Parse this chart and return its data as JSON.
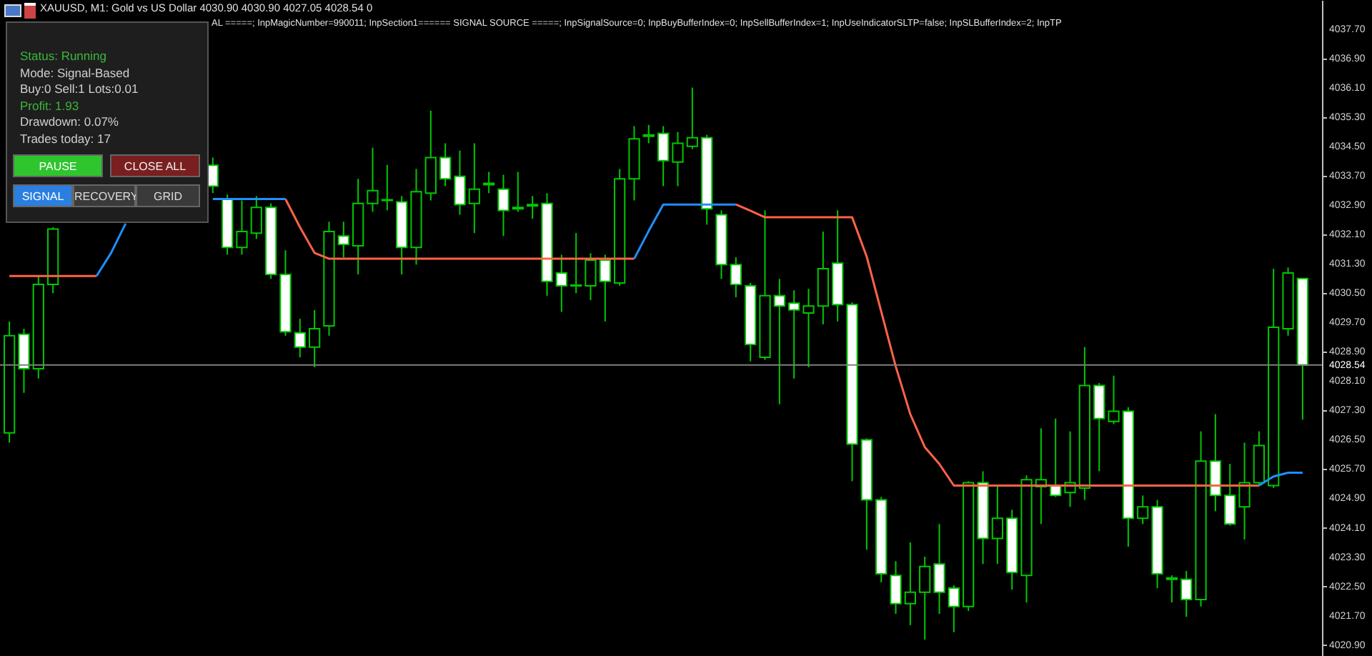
{
  "chart_data": {
    "type": "candlestick",
    "title": "XAUUSD, M1:  Gold vs US Dollar  4030.90 4030.90 4027.05 4028.54  0",
    "annotations": [
      "AL =====; InpMagicNumber=990011; InpSection1====== SIGNAL SOURCE =====; InpSignalSource=0; InpBuyBufferIndex=0; InpSellBufferIndex=1; InpUseIndicatorSLTP=false; InpSLBufferIndex=2; InpTP",
      "Status: Running",
      "Mode: Signal-Based",
      "Buy:0  Sell:1  Lots:0.01",
      "Profit: 1.93",
      "Drawdown: 0.07%",
      "Trades today: 17",
      "PAUSE",
      "CLOSE ALL",
      "SIGNAL",
      "RECOVERY",
      "GRID"
    ],
    "categories": [
      null,
      null,
      null,
      null,
      null,
      null,
      null,
      null,
      null,
      null,
      null,
      null,
      null,
      null,
      null,
      null,
      null,
      null,
      null,
      null,
      null,
      null,
      null,
      null,
      null,
      null,
      null,
      null,
      null,
      null,
      null,
      null,
      null,
      null,
      null,
      null,
      null,
      null,
      null,
      null,
      null,
      null,
      null,
      null,
      null,
      null,
      null,
      null,
      null,
      null,
      null,
      null,
      null,
      null,
      null,
      null,
      null,
      null,
      null,
      null,
      null,
      null,
      null,
      null,
      null,
      null,
      null,
      null,
      null,
      null,
      null,
      null,
      null,
      null,
      null,
      null,
      null,
      null,
      null,
      null,
      null,
      null,
      null,
      null,
      null,
      null,
      null,
      null,
      null,
      null
    ],
    "color": "#00c800",
    "ohlc": [
      [
        4026.69,
        4029.73,
        4026.42,
        4029.34
      ],
      [
        4029.38,
        4029.53,
        4027.78,
        4028.44
      ],
      [
        4028.44,
        4030.97,
        4028.17,
        4030.74
      ],
      [
        4030.74,
        4032.3,
        4030.5,
        4032.25
      ],
      null,
      null,
      null,
      null,
      null,
      null,
      null,
      null,
      null,
      null,
      [
        4033.99,
        4034.2,
        4033.23,
        4033.42
      ],
      [
        4033.07,
        4033.19,
        4031.55,
        4031.75
      ],
      [
        4031.75,
        4033.03,
        4031.55,
        4032.18
      ],
      [
        4032.14,
        4033.15,
        4031.98,
        4032.84
      ],
      [
        4032.84,
        4032.95,
        4030.89,
        4031.01
      ],
      [
        4031.01,
        4031.67,
        4029.34,
        4029.45
      ],
      [
        4029.42,
        4029.8,
        4028.75,
        4029.03
      ],
      [
        4029.03,
        4030.04,
        4028.48,
        4029.53
      ],
      [
        4029.61,
        4032.45,
        4029.34,
        4032.18
      ],
      [
        4032.06,
        4032.45,
        4031.48,
        4031.83
      ],
      [
        4031.79,
        4033.62,
        4031.01,
        4032.95
      ],
      [
        4032.95,
        4034.47,
        4032.72,
        4033.3
      ],
      [
        4033.03,
        4034.0,
        4032.76,
        4033.05
      ],
      [
        4032.99,
        4033.15,
        4031.01,
        4031.75
      ],
      [
        4031.75,
        4033.89,
        4031.28,
        4033.27
      ],
      [
        4033.23,
        4035.48,
        4033.03,
        4034.2
      ],
      [
        4034.2,
        4034.59,
        4033.42,
        4033.62
      ],
      [
        4033.69,
        4034.39,
        4032.64,
        4032.92
      ],
      [
        4032.95,
        4034.59,
        4032.14,
        4033.34
      ],
      [
        4033.46,
        4033.81,
        4033.23,
        4033.5
      ],
      [
        4033.34,
        4033.73,
        4032.06,
        4032.76
      ],
      [
        4032.84,
        4033.81,
        4032.72,
        4032.8
      ],
      [
        4032.92,
        4033.15,
        4032.53,
        4032.88
      ],
      [
        4032.95,
        4033.23,
        4030.43,
        4030.82
      ],
      [
        4031.05,
        4031.55,
        4029.99,
        4030.7
      ],
      [
        4030.72,
        4032.14,
        4030.5,
        4030.7
      ],
      [
        4030.7,
        4031.59,
        4030.31,
        4031.4
      ],
      [
        4031.4,
        4031.55,
        4029.73,
        4030.82
      ],
      [
        4030.78,
        4033.89,
        4030.7,
        4033.62
      ],
      [
        4033.62,
        4035.06,
        4033.03,
        4034.71
      ],
      [
        4034.78,
        4035.09,
        4034.59,
        4034.82
      ],
      [
        4034.86,
        4035.06,
        4033.42,
        4034.12
      ],
      [
        4034.08,
        4034.9,
        4033.42,
        4034.59
      ],
      [
        4034.51,
        4036.11,
        4034.43,
        4034.74
      ],
      [
        4034.74,
        4034.82,
        4032.37,
        4032.8
      ],
      [
        4032.64,
        4032.76,
        4030.89,
        4031.28
      ],
      [
        4031.28,
        4031.48,
        4030.39,
        4030.74
      ],
      [
        4030.7,
        4030.78,
        4028.64,
        4029.1
      ],
      [
        4028.75,
        4032.76,
        4028.68,
        4030.43
      ],
      [
        4030.43,
        4030.89,
        4027.47,
        4030.15
      ],
      [
        4030.23,
        4030.58,
        4028.17,
        4030.04
      ],
      [
        4029.96,
        4030.62,
        4028.48,
        4030.15
      ],
      [
        4030.15,
        4032.18,
        4029.65,
        4031.17
      ],
      [
        4031.32,
        4032.76,
        4029.73,
        4030.19
      ],
      [
        4030.19,
        4030.25,
        4025.37,
        4026.38
      ],
      [
        4026.5,
        4026.54,
        4023.5,
        4024.86
      ],
      [
        4024.86,
        4024.94,
        4022.61,
        4022.84
      ],
      [
        4022.8,
        4023.19,
        4021.75,
        4022.03
      ],
      [
        4022.03,
        4023.7,
        4021.44,
        4022.34
      ],
      [
        4022.34,
        4023.31,
        4021.05,
        4023.04
      ],
      [
        4023.11,
        4024.2,
        4021.75,
        4022.34
      ],
      [
        4022.45,
        4022.53,
        4021.25,
        4021.95
      ],
      [
        4021.95,
        4025.37,
        4021.83,
        4025.33
      ],
      [
        4025.33,
        4025.64,
        4023.11,
        4023.81
      ],
      [
        4023.81,
        4025.25,
        4023.11,
        4024.36
      ],
      [
        4024.36,
        4024.59,
        4022.41,
        4022.88
      ],
      [
        4022.8,
        4025.53,
        4022.06,
        4025.41
      ],
      [
        4025.22,
        4026.81,
        4024.2,
        4025.41
      ],
      [
        4025.25,
        4027.08,
        4024.94,
        4024.98
      ],
      [
        4025.06,
        4026.73,
        4024.67,
        4025.33
      ],
      [
        4025.18,
        4029.03,
        4024.86,
        4027.98
      ],
      [
        4027.98,
        4028.05,
        4025.64,
        4027.08
      ],
      [
        4027.0,
        4028.25,
        4026.93,
        4027.28
      ],
      [
        4027.28,
        4027.39,
        4023.58,
        4024.36
      ],
      [
        4024.36,
        4024.98,
        4024.2,
        4024.67
      ],
      [
        4024.67,
        4024.86,
        4022.45,
        4022.84
      ],
      [
        4022.73,
        4022.8,
        4022.06,
        4022.69
      ],
      [
        4022.69,
        4022.92,
        4021.67,
        4022.14
      ],
      [
        4022.14,
        4026.73,
        4021.95,
        4025.92
      ],
      [
        4025.92,
        4027.2,
        4024.55,
        4024.98
      ],
      [
        4024.98,
        4025.84,
        4024.16,
        4024.2
      ],
      [
        4024.67,
        4026.42,
        4023.78,
        4025.33
      ],
      [
        4025.33,
        4026.73,
        4025.25,
        4026.34
      ],
      [
        4025.25,
        4031.17,
        4025.18,
        4029.57
      ],
      [
        4029.53,
        4031.2,
        4029.34,
        4031.05
      ],
      [
        4030.9,
        4030.9,
        4027.05,
        4028.54
      ]
    ],
    "series": [
      {
        "type": "line",
        "color": "#ff6347",
        "values": [
          4030.97,
          4030.97,
          4030.97,
          4030.97,
          4030.97,
          4030.97,
          4030.97,
          null,
          null,
          null,
          null,
          null,
          null,
          null,
          null,
          null,
          null,
          null,
          null,
          4033.07,
          4032.3,
          4031.6,
          4031.44,
          4031.44,
          4031.44,
          4031.44,
          4031.44,
          4031.44,
          4031.44,
          4031.44,
          4031.44,
          4031.44,
          4031.44,
          4031.44,
          4031.44,
          4031.44,
          4031.44,
          4031.44,
          4031.44,
          4031.44,
          4031.44,
          4031.44,
          4031.44,
          4031.44,
          null,
          null,
          null,
          null,
          null,
          null,
          4032.92,
          4032.75,
          4032.57,
          4032.57,
          4032.57,
          4032.57,
          4032.57,
          4032.57,
          4032.57,
          4031.5,
          4030.0,
          4028.5,
          4027.2,
          4026.3,
          4025.84,
          4025.25,
          4025.25,
          4025.25,
          4025.25,
          4025.25,
          4025.25,
          4025.25,
          4025.25,
          4025.25,
          4025.25,
          4025.25,
          4025.25,
          4025.25,
          4025.25,
          4025.25,
          4025.25,
          4025.25,
          4025.25,
          4025.25,
          4025.25,
          4025.25,
          4025.25,
          null,
          null,
          null
        ]
      },
      {
        "type": "line",
        "color": "#1e90ff",
        "values": [
          null,
          null,
          null,
          null,
          null,
          null,
          4030.97,
          4031.6,
          4032.4,
          null,
          null,
          null,
          null,
          null,
          4033.07,
          4033.07,
          4033.07,
          4033.07,
          4033.07,
          4033.07,
          null,
          null,
          null,
          null,
          null,
          null,
          null,
          null,
          null,
          null,
          null,
          null,
          null,
          null,
          null,
          null,
          null,
          null,
          null,
          null,
          null,
          null,
          null,
          4031.44,
          4032.2,
          4032.92,
          4032.92,
          4032.92,
          4032.92,
          4032.92,
          4032.92,
          null,
          null,
          null,
          null,
          null,
          null,
          null,
          null,
          null,
          null,
          null,
          null,
          null,
          null,
          null,
          null,
          null,
          null,
          null,
          null,
          null,
          null,
          null,
          null,
          null,
          null,
          null,
          null,
          null,
          null,
          null,
          null,
          null,
          null,
          null,
          4025.25,
          4025.5,
          4025.6,
          4025.6
        ]
      }
    ],
    "ylim": [
      4020.6,
      4038.5
    ],
    "yticks": [
      {
        "value": 4037.7,
        "label": "4037.70"
      },
      {
        "value": 4036.9,
        "label": "4036.90"
      },
      {
        "value": 4036.1,
        "label": "4036.10"
      },
      {
        "value": 4035.3,
        "label": "4035.30"
      },
      {
        "value": 4034.5,
        "label": "4034.50"
      },
      {
        "value": 4033.7,
        "label": "4033.70"
      },
      {
        "value": 4032.9,
        "label": "4032.90"
      },
      {
        "value": 4032.1,
        "label": "4032.10"
      },
      {
        "value": 4031.3,
        "label": "4031.30"
      },
      {
        "value": 4030.5,
        "label": "4030.50"
      },
      {
        "value": 4029.7,
        "label": "4029.70"
      },
      {
        "value": 4028.9,
        "label": "4028.90"
      },
      {
        "value": 4028.1,
        "label": "4028.10"
      },
      {
        "value": 4027.3,
        "label": "4027.30"
      },
      {
        "value": 4026.5,
        "label": "4026.50"
      },
      {
        "value": 4025.7,
        "label": "4025.70"
      },
      {
        "value": 4024.9,
        "label": "4024.90"
      },
      {
        "value": 4024.1,
        "label": "4024.10"
      },
      {
        "value": 4023.3,
        "label": "4023.30"
      },
      {
        "value": 4022.5,
        "label": "4022.50"
      },
      {
        "value": 4021.7,
        "label": "4021.70"
      },
      {
        "value": 4020.9,
        "label": "4020.90"
      }
    ],
    "tick_labels": "y",
    "ref_lines": [
      {
        "axis": "y",
        "value": 4028.54,
        "label": "4028.54",
        "color": "#808080"
      }
    ]
  }
}
